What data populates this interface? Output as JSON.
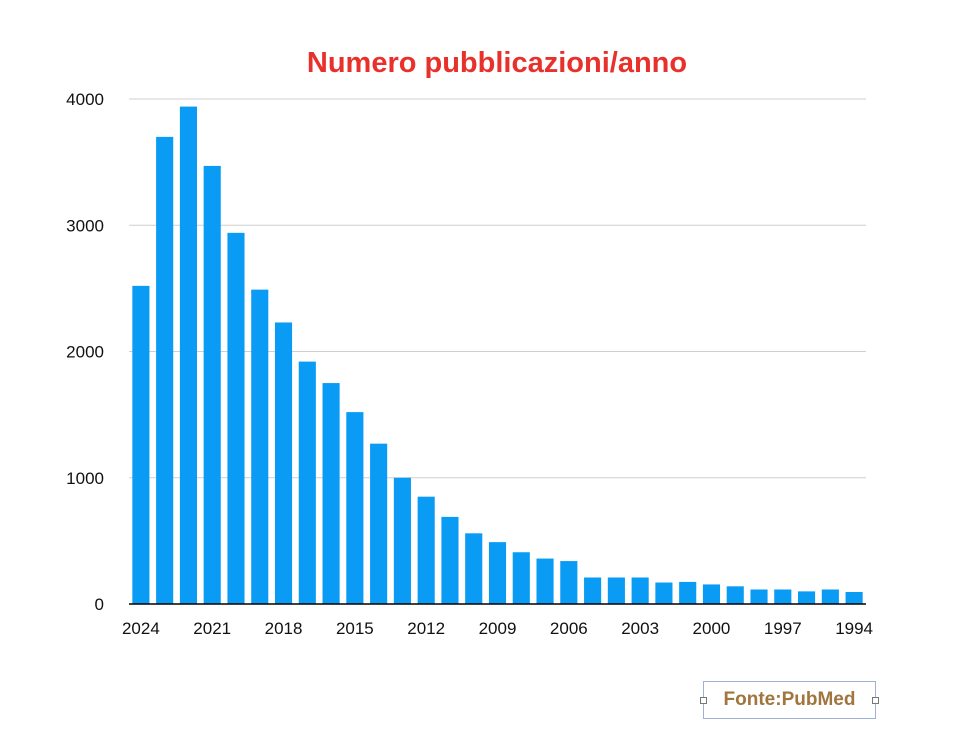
{
  "colors": {
    "bar": "#0a9cf5",
    "title": "#e8312a",
    "gridline": "#cfcfcf",
    "axis": "#000000",
    "source_text": "#a0753e"
  },
  "source_label": "Fonte:PubMed",
  "chart_data": {
    "type": "bar",
    "title": "Numero pubblicazioni/anno",
    "xlabel": "",
    "ylabel": "",
    "categories": [
      "2024",
      "2023",
      "2022",
      "2021",
      "2020",
      "2019",
      "2018",
      "2017",
      "2016",
      "2015",
      "2014",
      "2013",
      "2012",
      "2011",
      "2010",
      "2009",
      "2008",
      "2007",
      "2006",
      "2005",
      "2004",
      "2003",
      "2002",
      "2001",
      "2000",
      "1999",
      "1998",
      "1997",
      "1996",
      "1995",
      "1994"
    ],
    "values": [
      2520,
      3700,
      3940,
      3470,
      2940,
      2490,
      2230,
      1920,
      1750,
      1520,
      1270,
      1000,
      850,
      690,
      560,
      490,
      410,
      360,
      340,
      210,
      210,
      210,
      170,
      175,
      155,
      140,
      115,
      115,
      100,
      115,
      95
    ],
    "ylim": [
      0,
      4000
    ],
    "y_ticks": [
      0,
      1000,
      2000,
      3000,
      4000
    ],
    "x_tick_labels": [
      "2024",
      "2021",
      "2018",
      "2015",
      "2012",
      "2009",
      "2006",
      "2003",
      "2000",
      "1997",
      "1994"
    ],
    "x_tick_every": 3,
    "grid": true,
    "legend": "none"
  }
}
